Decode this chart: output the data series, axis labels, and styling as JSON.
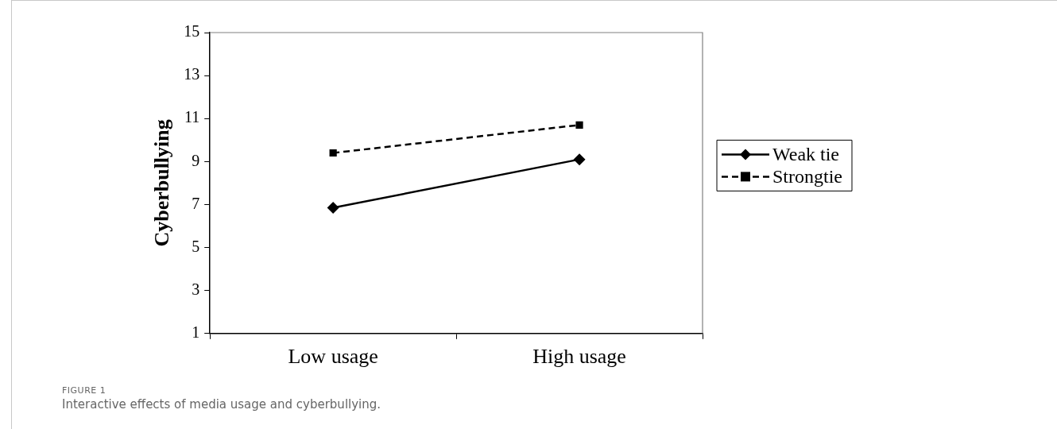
{
  "chart_data": {
    "type": "line",
    "ylabel": "Cyberbullying",
    "categories": [
      "Low usage",
      "High usage"
    ],
    "series": [
      {
        "name": "Weak tie",
        "color": "#000000",
        "values": [
          6.85,
          9.1
        ],
        "marker": "diamond",
        "line_style": "solid"
      },
      {
        "name": "Strongtie",
        "color": "#000000",
        "values": [
          9.4,
          10.7
        ],
        "marker": "square",
        "line_style": "dashed"
      }
    ],
    "ylim": [
      1,
      15
    ],
    "yticks": [
      1,
      3,
      5,
      7,
      9,
      11,
      13,
      15
    ],
    "grid": false,
    "legend": "right",
    "annotations": [
      "FIGURE 1",
      "Interactive effects of media usage and cyberbullying."
    ]
  }
}
